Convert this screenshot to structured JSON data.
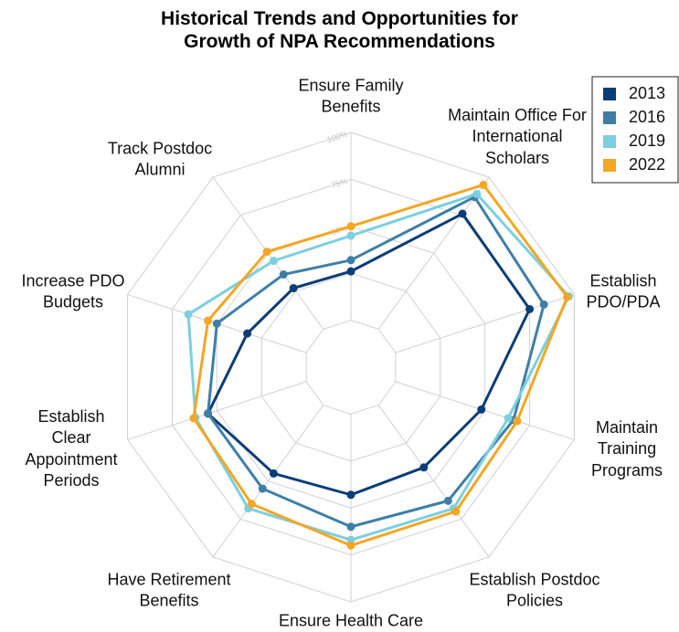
{
  "chart_data": {
    "type": "radar",
    "title": "Historical Trends and Opportunities for Growth of NPA Recommendations",
    "categories": [
      "Ensure Family Benefits",
      "Maintain Office For International Scholars",
      "Establish PDO/PDA",
      "Maintain Training Programs",
      "Establish Postdoc Policies",
      "Ensure Health Care",
      "Have Retirement Benefits",
      "Establish Clear Appointment Periods",
      "Increase PDO Budgets",
      "Track Postdoc Alumni"
    ],
    "series": [
      {
        "name": "2013",
        "color": "#0b3d78",
        "values": [
          26,
          76,
          75,
          48,
          41,
          43,
          45,
          55,
          33,
          27
        ]
      },
      {
        "name": "2016",
        "color": "#3e7fa8",
        "values": [
          32,
          87,
          83,
          66,
          63,
          60,
          55,
          55,
          50,
          36
        ]
      },
      {
        "name": "2019",
        "color": "#7ccfe0",
        "values": [
          45,
          89,
          97,
          63,
          68,
          67,
          68,
          62,
          66,
          45
        ]
      },
      {
        "name": "2022",
        "color": "#f5a623",
        "values": [
          50,
          95,
          96,
          68,
          70,
          70,
          65,
          63,
          55,
          51
        ]
      }
    ],
    "rlim": [
      -25,
      100
    ],
    "rticks": [
      {
        "value": 0,
        "label": null
      },
      {
        "value": 25,
        "label": null
      },
      {
        "value": 50,
        "label": "50%"
      },
      {
        "value": 75,
        "label": "75%"
      },
      {
        "value": 100,
        "label": "100%"
      }
    ],
    "grid": true,
    "legend": "upper right"
  }
}
